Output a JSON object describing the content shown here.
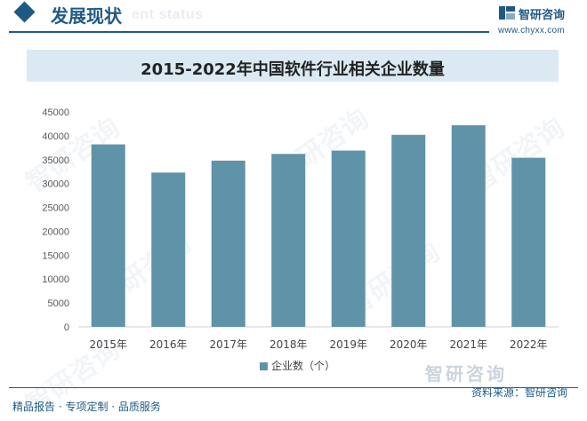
{
  "header": {
    "title": "发展现状",
    "subtitle_en": "ent status",
    "logo_text": "智研咨询",
    "logo_url": "www.chyxx.com"
  },
  "footer": {
    "left_text": "精品报告 · 专项定制 · 品质服务",
    "source_text": "资料来源：智研咨询",
    "logo_text": "智研咨询"
  },
  "watermark": "智研咨询",
  "colors": {
    "brand": "#1f5a86",
    "bar": "#5f93a8",
    "title_bar": "#dbe9f3"
  },
  "chart_data": {
    "type": "bar",
    "title": "2015-2022年中国软件行业相关企业数量",
    "categories": [
      "2015年",
      "2016年",
      "2017年",
      "2018年",
      "2019年",
      "2020年",
      "2021年",
      "2022年"
    ],
    "series": [
      {
        "name": "企业数（个）",
        "values": [
          38200,
          32300,
          34800,
          36200,
          36900,
          40200,
          42200,
          35400
        ]
      }
    ],
    "ylim": [
      0,
      45000
    ],
    "yticks": [
      0,
      5000,
      10000,
      15000,
      20000,
      25000,
      30000,
      35000,
      40000,
      45000
    ],
    "grid": false,
    "legend_position": "bottom"
  }
}
